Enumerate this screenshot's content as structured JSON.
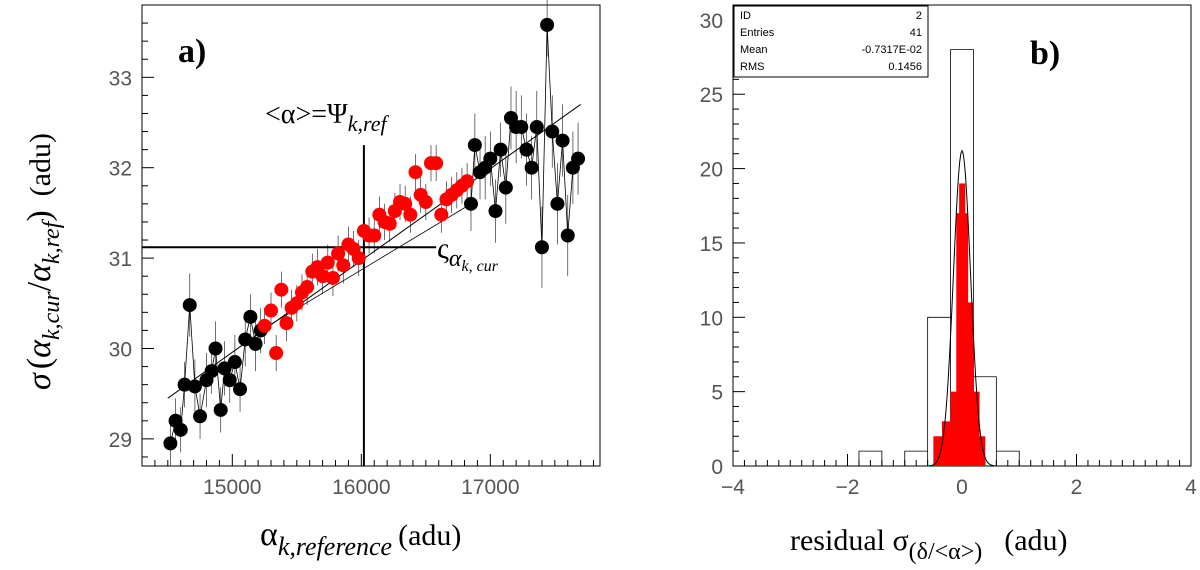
{
  "chart_data": [
    {
      "type": "scatter",
      "panel_label": "a)",
      "xlabel": {
        "main": "α",
        "sub": "k,reference",
        "unit": "(adu)"
      },
      "ylabel": {
        "sigma": "σ",
        "open": "(",
        "a1": "α",
        "s1": "k,cur",
        "slash": "/",
        "a2": "α",
        "s2": "k,ref",
        "close": ")",
        "unit": "(adu)"
      },
      "xlim": [
        14300,
        17850
      ],
      "ylim": [
        28.7,
        33.8
      ],
      "xticks": [
        15000,
        16000,
        17000
      ],
      "yticks": [
        29,
        30,
        31,
        32,
        33
      ],
      "reference": {
        "x": 16020,
        "y": 31.12
      },
      "annotation_top": {
        "main": "<α>=Ψ",
        "sub": "k,ref"
      },
      "annotation_right": {
        "main": "ς",
        "sub1": "α",
        "sub2": "k, cur"
      },
      "fit_line": {
        "x": [
          14500,
          17700
        ],
        "y": [
          29.45,
          32.7
        ]
      },
      "series": [
        {
          "name": "black points",
          "color": "#000000",
          "x": [
            14520,
            14560,
            14600,
            14630,
            14670,
            14710,
            14750,
            14800,
            14840,
            14870,
            14910,
            14940,
            14980,
            15020,
            15060,
            15100,
            15140,
            15180,
            15220,
            16850,
            16880,
            16920,
            16960,
            17000,
            17040,
            17080,
            17120,
            17160,
            17200,
            17240,
            17280,
            17320,
            17360,
            17400,
            17440,
            17480,
            17520,
            17560,
            17600,
            17640,
            17680
          ],
          "y": [
            28.95,
            29.2,
            29.1,
            29.6,
            30.48,
            29.58,
            29.25,
            29.65,
            29.75,
            30,
            29.32,
            29.78,
            29.65,
            29.85,
            29.55,
            30.1,
            30.35,
            30.05,
            30.2,
            31.6,
            32.25,
            31.95,
            32,
            32.1,
            31.52,
            32.2,
            31.78,
            32.55,
            32.45,
            32.45,
            32.2,
            32,
            32.45,
            31.12,
            33.58,
            32.4,
            31.6,
            32.3,
            31.25,
            32,
            32.1
          ],
          "err": [
            0.25,
            0.25,
            0.25,
            0.25,
            0.35,
            0.3,
            0.25,
            0.3,
            0.25,
            0.3,
            0.25,
            0.3,
            0.25,
            0.3,
            0.25,
            0.3,
            0.25,
            0.3,
            0.25,
            0.3,
            0.35,
            0.3,
            0.35,
            0.3,
            0.35,
            0.3,
            0.4,
            0.35,
            0.4,
            0.35,
            0.4,
            0.35,
            0.4,
            0.45,
            0.35,
            0.4,
            0.45,
            0.4,
            0.45,
            0.4,
            0.4
          ]
        },
        {
          "name": "red points",
          "color": "#ff0000",
          "x": [
            15250,
            15300,
            15340,
            15380,
            15420,
            15460,
            15500,
            15540,
            15580,
            15620,
            15660,
            15700,
            15740,
            15780,
            15820,
            15860,
            15900,
            15940,
            15980,
            16020,
            16060,
            16100,
            16140,
            16180,
            16220,
            16260,
            16300,
            16340,
            16380,
            16420,
            16460,
            16500,
            16540,
            16580,
            16620,
            16660,
            16700,
            16740,
            16780,
            16820
          ],
          "y": [
            30.25,
            30.42,
            29.95,
            30.65,
            30.28,
            30.45,
            30.5,
            30.62,
            30.68,
            30.85,
            30.9,
            30.8,
            30.95,
            30.78,
            31.05,
            30.92,
            31.15,
            31.1,
            31,
            31.3,
            31.25,
            31.25,
            31.48,
            31.4,
            31.38,
            31.52,
            31.62,
            31.6,
            31.48,
            31.95,
            31.7,
            31.62,
            32.05,
            32.05,
            31.48,
            31.65,
            31.7,
            31.75,
            31.8,
            31.85
          ],
          "err": [
            0.2,
            0.2,
            0.2,
            0.2,
            0.2,
            0.2,
            0.2,
            0.2,
            0.2,
            0.2,
            0.2,
            0.2,
            0.2,
            0.2,
            0.2,
            0.2,
            0.2,
            0.2,
            0.2,
            0.2,
            0.2,
            0.2,
            0.2,
            0.2,
            0.2,
            0.2,
            0.2,
            0.2,
            0.2,
            0.2,
            0.2,
            0.2,
            0.2,
            0.2,
            0.2,
            0.2,
            0.2,
            0.2,
            0.2,
            0.2
          ]
        }
      ]
    },
    {
      "type": "bar",
      "panel_label": "b)",
      "xlabel": {
        "main": "residual σ",
        "sub": "(δ/<α>)",
        "unit": "(adu)"
      },
      "xlim": [
        -4,
        4
      ],
      "ylim": [
        0,
        31
      ],
      "xticks": [
        -4,
        -2,
        0,
        2,
        4
      ],
      "yticks": [
        0,
        5,
        10,
        15,
        20,
        25,
        30
      ],
      "bin_width": 0.4,
      "open_histogram": {
        "x": [
          -1.6,
          -0.8,
          -0.4,
          0.0,
          0.4,
          0.8
        ],
        "counts": [
          1,
          1,
          10,
          28,
          6,
          1
        ]
      },
      "filled_histogram": {
        "color": "#ff0000",
        "x": [
          -0.5,
          -0.45,
          -0.4,
          -0.35,
          -0.3,
          -0.25,
          -0.2,
          -0.15,
          -0.1,
          -0.05,
          0.0,
          0.05,
          0.1,
          0.15,
          0.2,
          0.25,
          0.3,
          0.35
        ],
        "counts": [
          2,
          2,
          2,
          3,
          3,
          3,
          5,
          5,
          17,
          19,
          19,
          17,
          11,
          11,
          5,
          5,
          2,
          2
        ]
      },
      "gaussian": {
        "amplitude": 21.2,
        "mean": 0.0,
        "sigma": 0.15
      },
      "statbox": {
        "rows": [
          {
            "label": "ID",
            "value": "2"
          },
          {
            "label": "Entries",
            "value": "41"
          },
          {
            "label": "Mean",
            "value": "-0.7317E-02"
          },
          {
            "label": "RMS",
            "value": "0.1456"
          }
        ]
      }
    }
  ]
}
